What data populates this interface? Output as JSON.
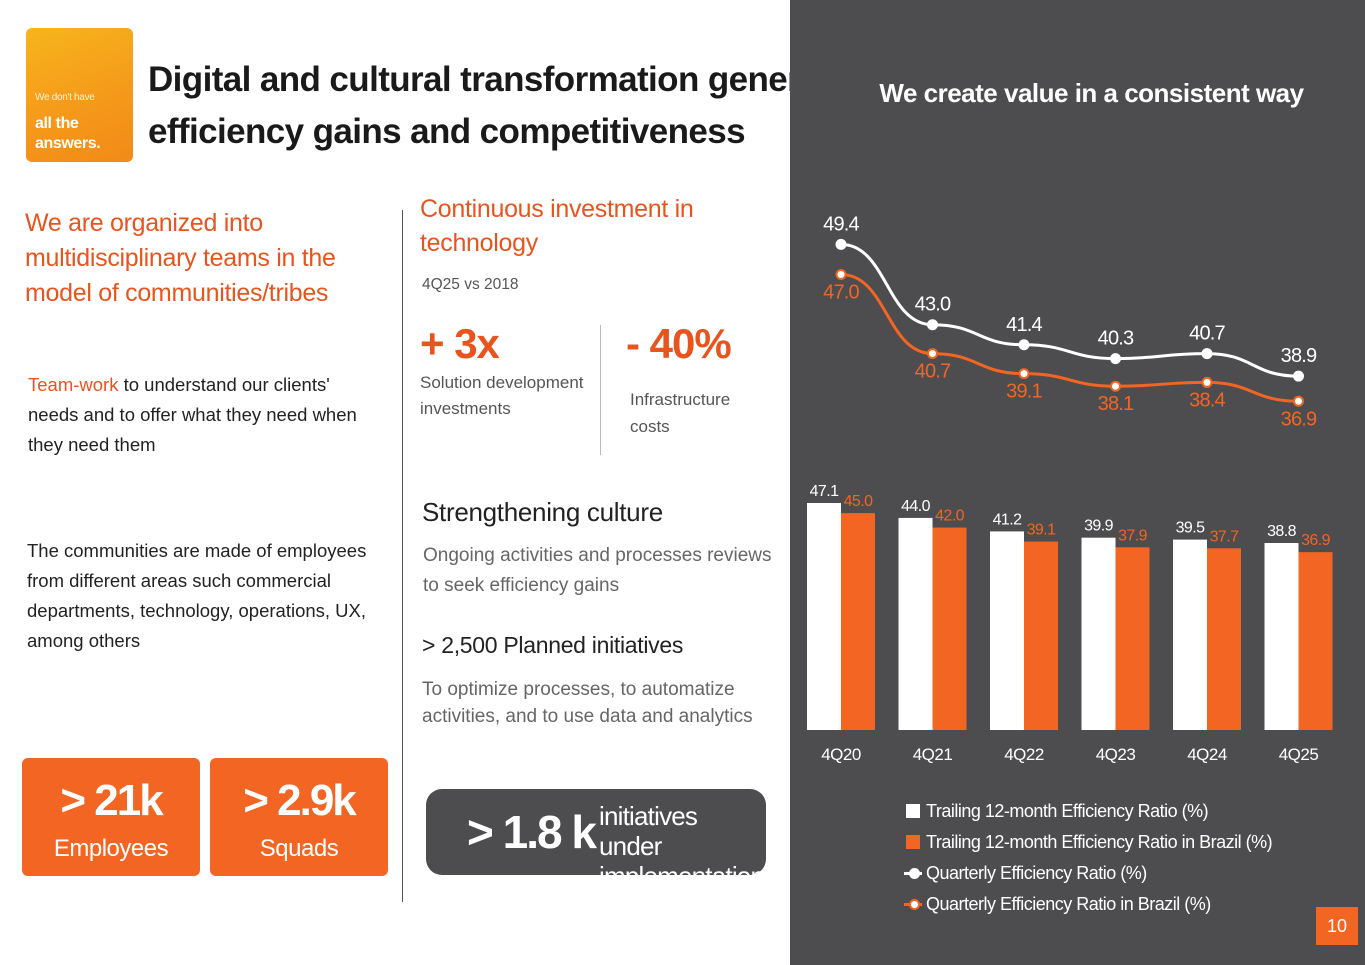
{
  "brand": {
    "logo_small": "We don't have",
    "logo_big_line1": "all the",
    "logo_big_line2": "answers."
  },
  "header": {
    "title_line1": "Digital and cultural transformation generates",
    "title_line2": "efficiency gains and competitiveness"
  },
  "left": {
    "heading_line1": "We are organized into",
    "heading_line2": "multidisciplinary teams in the",
    "heading_line3": "model of communities/tribes",
    "teamwork_highlight": "Team-work",
    "teamwork_text": " to understand our clients' needs and to offer what they need when they need them",
    "communities_text": "The communities are made of employees from different areas such commercial departments, technology, operations, UX, among others",
    "employees_value": "> 21k",
    "employees_label": "Employees",
    "squads_value": "> 2.9k",
    "squads_label": "Squads"
  },
  "middle": {
    "investment_heading_line1": "Continuous investment in",
    "investment_heading_line2": "technology",
    "investment_sub": "4Q25 vs 2018",
    "stat1_value": "+ 3x",
    "stat1_label_line1": "Solution development",
    "stat1_label_line2": "investments",
    "stat2_value": "- 40%",
    "stat2_label_line1": "Infrastructure",
    "stat2_label_line2": "costs",
    "culture_heading": "Strengthening culture",
    "culture_text": "Ongoing activities and processes reviews to seek efficiency gains",
    "planned_heading": "> 2,500 Planned initiatives",
    "planned_text": "To optimize processes, to automatize activities, and to use data and analytics",
    "initiatives_value": "> 1.8 k",
    "initiatives_label_line1": "initiatives under",
    "initiatives_label_line2": "implementation"
  },
  "chart_data": {
    "type": "bar",
    "title": "We create value in a consistent way",
    "categories": [
      "4Q20",
      "4Q21",
      "4Q22",
      "4Q23",
      "4Q24",
      "4Q25"
    ],
    "bar_series": [
      {
        "name": "Trailing 12-month Efficiency Ratio (%)",
        "labels": [
          "47.1",
          "44.0",
          "41.2",
          "39.9",
          "39.5",
          "38.8"
        ],
        "values": [
          47.1,
          44.0,
          41.2,
          39.9,
          39.5,
          38.8
        ],
        "color": "#ffffff",
        "label_color": "#ffffff"
      },
      {
        "name": "Trailing 12-month Efficiency Ratio in Brazil (%)",
        "labels": [
          "45.0",
          "42.0",
          "39.1",
          "37.9",
          "37.7",
          "36.9"
        ],
        "values": [
          45.0,
          42.0,
          39.1,
          37.9,
          37.7,
          36.9
        ],
        "color": "#f26522",
        "label_color": "#f26522"
      }
    ],
    "line_series": [
      {
        "name": "Quarterly Efficiency Ratio (%)",
        "labels": [
          "49.4",
          "43.0",
          "41.4",
          "40.3",
          "40.7",
          "38.9"
        ],
        "values": [
          49.4,
          43.0,
          41.4,
          40.3,
          40.7,
          38.9
        ],
        "color": "#ffffff",
        "label_color": "#ffffff"
      },
      {
        "name": "Quarterly Efficiency Ratio in Brazil (%)",
        "labels": [
          "47.0",
          "40.7",
          "39.1",
          "38.1",
          "38.4",
          "36.9"
        ],
        "values": [
          47.0,
          40.7,
          39.1,
          38.1,
          38.4,
          36.9
        ],
        "color": "#f26522",
        "label_color": "#f26522"
      }
    ],
    "legend_position": "bottom",
    "grid": false
  },
  "footer": {
    "page_number": "10"
  }
}
